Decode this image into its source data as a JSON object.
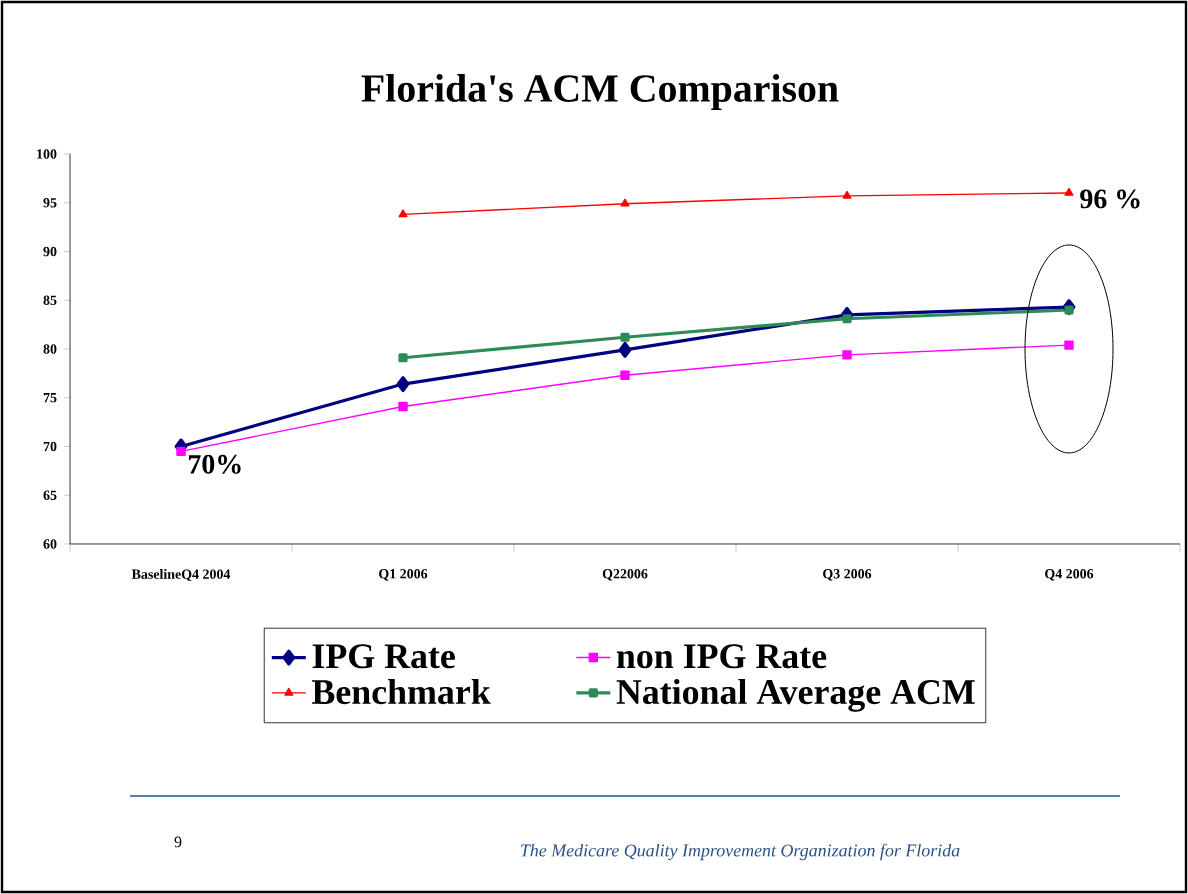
{
  "chart_data": {
    "type": "line",
    "title": "Florida's ACM Comparison",
    "categories": [
      "BaselineQ4 2004",
      "Q1 2006",
      "Q22006",
      "Q3 2006",
      "Q4 2006"
    ],
    "ylim": [
      60,
      100
    ],
    "yticks": [
      60,
      65,
      70,
      75,
      80,
      85,
      90,
      95,
      100
    ],
    "series": [
      {
        "name": "IPG Rate",
        "color": "#000080",
        "marker": "diamond",
        "values": [
          70.0,
          76.4,
          79.9,
          83.5,
          84.3
        ]
      },
      {
        "name": "non IPG Rate",
        "color": "#ff00ff",
        "marker": "square",
        "values": [
          69.5,
          74.1,
          77.3,
          79.4,
          80.4
        ]
      },
      {
        "name": "Benchmark",
        "color": "#ff0000",
        "marker": "triangle",
        "values": [
          null,
          93.8,
          94.9,
          95.7,
          96
        ]
      },
      {
        "name": "National Average ACM",
        "color": "#2e8b57",
        "marker": "square",
        "values": [
          null,
          79.1,
          81.2,
          83.1,
          84.0
        ]
      }
    ],
    "legend": "bottom",
    "grid": false,
    "annotations": [
      {
        "text": "70%",
        "x": "BaselineQ4 2004",
        "y": 70
      },
      {
        "text": "96 %",
        "x": "Q4 2006",
        "y": 96
      },
      "9",
      "The Medicare Quality Improvement Organization for Florida"
    ]
  }
}
